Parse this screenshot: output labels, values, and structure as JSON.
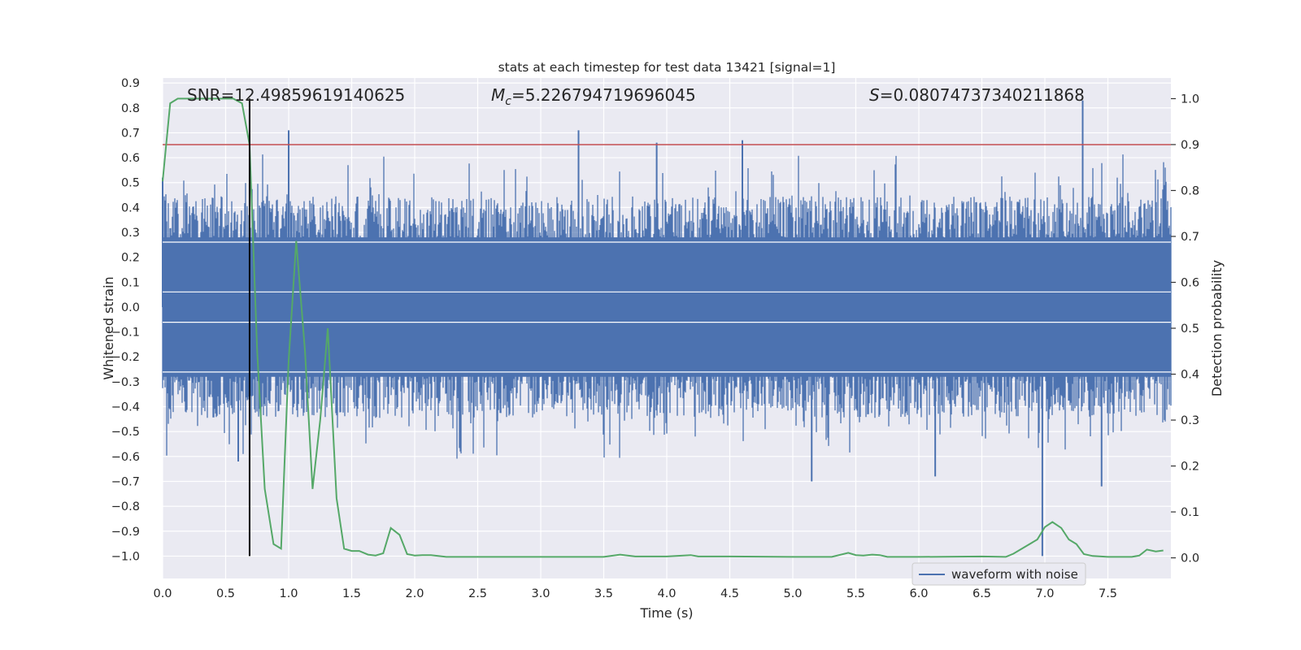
{
  "chart_data": {
    "type": "line",
    "title": "stats at each timestep for test data 13421 [signal=1]",
    "xlabel": "Time (s)",
    "ylabel_left": "Whitened strain",
    "ylabel_right": "Detection probability",
    "xlim": [
      0.0,
      8.0
    ],
    "ylim_left": [
      -1.09,
      0.92
    ],
    "ylim_right": [
      -0.045,
      1.045
    ],
    "x_ticks": [
      "0.0",
      "0.5",
      "1.0",
      "1.5",
      "2.0",
      "2.5",
      "3.0",
      "3.5",
      "4.0",
      "4.5",
      "5.0",
      "5.5",
      "6.0",
      "6.5",
      "7.0",
      "7.5"
    ],
    "y_ticks_left": [
      "0.9",
      "0.8",
      "0.7",
      "0.6",
      "0.5",
      "0.4",
      "0.3",
      "0.2",
      "0.1",
      "0.0",
      "−0.1",
      "−0.2",
      "−0.3",
      "−0.4",
      "−0.5",
      "−0.6",
      "−0.7",
      "−0.8",
      "−0.9",
      "−1.0"
    ],
    "y_ticks_right": [
      "1.0",
      "0.9",
      "0.8",
      "0.7",
      "0.6",
      "0.5",
      "0.4",
      "0.3",
      "0.2",
      "0.1",
      "0.0"
    ],
    "annotations": {
      "snr": "SNR=12.49859619140625",
      "mc_symbol": "M",
      "mc_sub": "c",
      "mc_value": "=5.226794719696045",
      "s_symbol": "S",
      "s_value": "=0.08074737340211868"
    },
    "legend": {
      "label": "waveform with noise",
      "position": "bottom-right"
    },
    "threshold": {
      "value": 0.9,
      "axis": "right"
    },
    "marker_time": 0.69,
    "series": [
      {
        "name": "waveform with noise",
        "axis": "left",
        "kind": "dense-noise",
        "x_range": [
          0.0,
          8.0
        ],
        "typical_band": [
          -0.28,
          0.28
        ],
        "peaks": [
          {
            "x": 0.0,
            "y": 0.52
          },
          {
            "x": 0.6,
            "y": -0.62
          },
          {
            "x": 1.0,
            "y": 0.71
          },
          {
            "x": 3.3,
            "y": 0.71
          },
          {
            "x": 3.92,
            "y": 0.66
          },
          {
            "x": 4.6,
            "y": 0.67
          },
          {
            "x": 5.15,
            "y": -0.7
          },
          {
            "x": 6.13,
            "y": -0.68
          },
          {
            "x": 6.98,
            "y": -1.0
          },
          {
            "x": 7.3,
            "y": 0.83
          },
          {
            "x": 7.45,
            "y": -0.72
          }
        ]
      },
      {
        "name": "detection probability",
        "axis": "right",
        "x": [
          0.0,
          0.06,
          0.12,
          0.19,
          0.25,
          0.31,
          0.38,
          0.44,
          0.5,
          0.56,
          0.63,
          0.69,
          0.75,
          0.81,
          0.88,
          0.94,
          1.0,
          1.06,
          1.13,
          1.19,
          1.25,
          1.31,
          1.38,
          1.44,
          1.5,
          1.56,
          1.63,
          1.69,
          1.75,
          1.81,
          1.88,
          1.94,
          2.0,
          2.06,
          2.13,
          2.25,
          2.5,
          3.0,
          3.5,
          3.63,
          3.75,
          4.0,
          4.19,
          4.25,
          4.5,
          5.0,
          5.31,
          5.44,
          5.5,
          5.56,
          5.63,
          5.69,
          5.75,
          6.0,
          6.5,
          6.69,
          6.75,
          6.94,
          7.0,
          7.06,
          7.13,
          7.19,
          7.25,
          7.31,
          7.38,
          7.5,
          7.69,
          7.75,
          7.81,
          7.88,
          7.94
        ],
        "y": [
          0.82,
          0.99,
          1.0,
          1.0,
          1.0,
          1.0,
          1.0,
          1.0,
          1.0,
          1.0,
          0.99,
          0.9,
          0.45,
          0.15,
          0.03,
          0.02,
          0.43,
          0.69,
          0.45,
          0.15,
          0.3,
          0.5,
          0.13,
          0.02,
          0.015,
          0.015,
          0.007,
          0.005,
          0.01,
          0.065,
          0.05,
          0.008,
          0.005,
          0.006,
          0.006,
          0.002,
          0.002,
          0.002,
          0.002,
          0.007,
          0.003,
          0.003,
          0.006,
          0.003,
          0.003,
          0.002,
          0.002,
          0.011,
          0.006,
          0.005,
          0.007,
          0.006,
          0.002,
          0.002,
          0.003,
          0.002,
          0.009,
          0.04,
          0.067,
          0.078,
          0.065,
          0.04,
          0.03,
          0.008,
          0.004,
          0.002,
          0.002,
          0.005,
          0.018,
          0.014,
          0.016
        ]
      }
    ]
  },
  "colors": {
    "background": "#ffffff",
    "plot_bg": "#eaeaf2",
    "grid": "#ffffff",
    "waveform": "#4c72b0",
    "probability": "#55a868",
    "threshold": "#c44e52",
    "marker": "#000000",
    "text": "#262626"
  }
}
